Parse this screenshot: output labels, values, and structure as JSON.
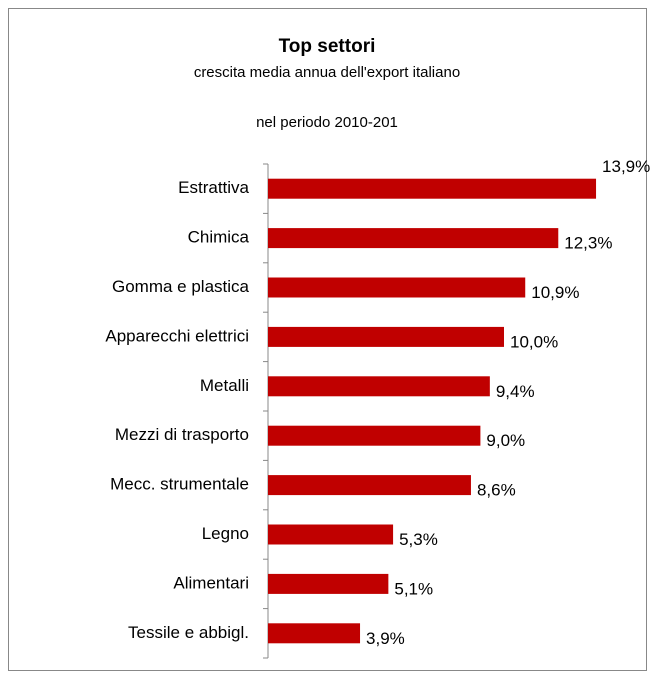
{
  "chart_data": {
    "type": "bar",
    "orientation": "horizontal",
    "title": "Top settori",
    "subtitle": "crescita media annua dell'export italiano",
    "subtitle2": "nel periodo 2010-201",
    "categories": [
      "Estrattiva",
      "Chimica",
      "Gomma e plastica",
      "Apparecchi elettrici",
      "Metalli",
      "Mezzi di trasporto",
      "Mecc. strumentale",
      "Legno",
      "Alimentari",
      "Tessile e abbigl."
    ],
    "values": [
      13.9,
      12.3,
      10.9,
      10.0,
      9.4,
      9.0,
      8.6,
      5.3,
      5.1,
      3.9
    ],
    "value_labels": [
      "13,9%",
      "12,3%",
      "10,9%",
      "10,0%",
      "9,4%",
      "9,0%",
      "8,6%",
      "5,3%",
      "5,1%",
      "3,9%"
    ],
    "color": "#c00000",
    "xlim": [
      0,
      15
    ]
  }
}
